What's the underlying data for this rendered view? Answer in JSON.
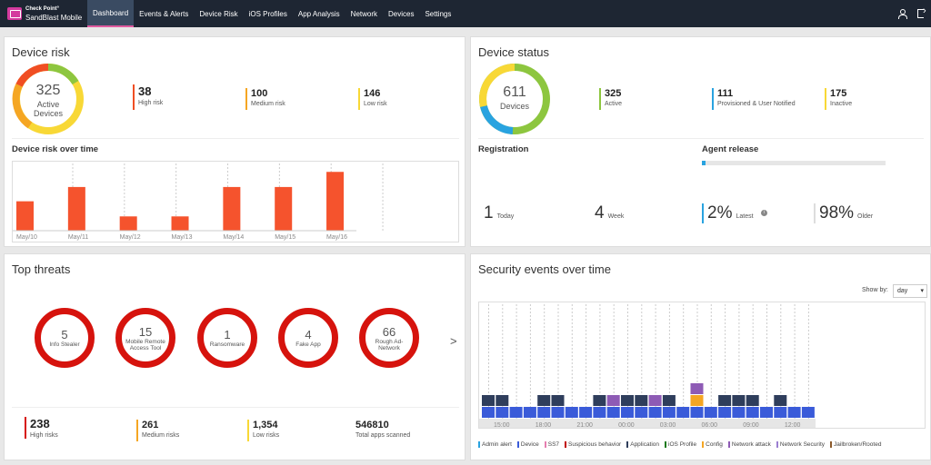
{
  "nav": {
    "logo_top": "Check Point°",
    "logo_bottom": "SandBlast Mobile",
    "items": [
      "Dashboard",
      "Events & Alerts",
      "Device Risk",
      "iOS Profiles",
      "App Analysis",
      "Network",
      "Devices",
      "Settings"
    ],
    "active": "Dashboard"
  },
  "device_risk": {
    "title": "Device risk",
    "total": "325",
    "total_label": "Active Devices",
    "stats": [
      {
        "value": "38",
        "label": "High risk",
        "color": "#f04e23"
      },
      {
        "value": "100",
        "label": "Medium risk",
        "color": "#f5a623"
      },
      {
        "value": "146",
        "label": "Low risk",
        "color": "#f8d836"
      }
    ],
    "donut_colors": {
      "high": "#f04e23",
      "medium": "#8dc63f",
      "low": "#f8d836",
      "other": "#f5a623"
    },
    "over_time_title": "Device risk over time"
  },
  "device_status": {
    "title": "Device status",
    "total": "611",
    "total_label": "Devices",
    "stats": [
      {
        "value": "325",
        "label": "Active",
        "color": "#8dc63f"
      },
      {
        "value": "111",
        "label": "Provisioned & User Notified",
        "color": "#29a3e0"
      },
      {
        "value": "175",
        "label": "Inactive",
        "color": "#f8d836"
      }
    ],
    "registration_title": "Registration",
    "registration": [
      {
        "value": "1",
        "label": "Today"
      },
      {
        "value": "4",
        "label": "Week"
      }
    ],
    "agent_title": "Agent release",
    "agent_progress": 0.02,
    "agent": [
      {
        "value": "2%",
        "label": "Latest",
        "color": "#29a3e0"
      },
      {
        "value": "98%",
        "label": "Older",
        "color": "#ddd"
      }
    ]
  },
  "top_threats": {
    "title": "Top threats",
    "items": [
      {
        "value": "5",
        "label": "Info Stealer"
      },
      {
        "value": "15",
        "label": "Mobile Remote Access Tool"
      },
      {
        "value": "1",
        "label": "Ransomware"
      },
      {
        "value": "4",
        "label": "Fake App"
      },
      {
        "value": "66",
        "label": "Rough Ad-Network"
      }
    ],
    "next_label": ">",
    "stats": [
      {
        "value": "238",
        "label": "High risks",
        "color": "#d6130d"
      },
      {
        "value": "261",
        "label": "Medium risks",
        "color": "#f5a623"
      },
      {
        "value": "1,354",
        "label": "Low risks",
        "color": "#f8d836"
      },
      {
        "value": "546810",
        "label": "Total apps scanned",
        "color": ""
      }
    ]
  },
  "security_events": {
    "title": "Security events over time",
    "show_by_label": "Show by:",
    "show_by_value": "day",
    "legend": [
      {
        "label": "Admin alert",
        "color": "#29a3e0"
      },
      {
        "label": "Device",
        "color": "#3a5bd9"
      },
      {
        "label": "SS7",
        "color": "#e57fb0"
      },
      {
        "label": "Suspicious behavior",
        "color": "#c00000"
      },
      {
        "label": "Application",
        "color": "#2f3e5c"
      },
      {
        "label": "iOS Profile",
        "color": "#1a7a1a"
      },
      {
        "label": "Config",
        "color": "#f5a623"
      },
      {
        "label": "Network attack",
        "color": "#8e5bb5"
      },
      {
        "label": "Network Security",
        "color": "#9b7fd1"
      },
      {
        "label": "Jailbroken/Rooted",
        "color": "#8b5a2b"
      }
    ]
  },
  "chart_data": [
    {
      "type": "bar",
      "title": "Device risk over time",
      "categories": [
        "May/10",
        "May/11",
        "May/12",
        "May/13",
        "May/14",
        "May/15",
        "May/16"
      ],
      "values": [
        35,
        52,
        17,
        17,
        52,
        52,
        70
      ],
      "ylim": [
        0,
        80
      ],
      "color": "#f5532d"
    },
    {
      "type": "bar",
      "title": "Security events over time",
      "x_ticks": [
        "15:00",
        "18:00",
        "21:00",
        "00:00",
        "03:00",
        "06:00",
        "09:00",
        "12:00"
      ],
      "ylim": [
        0,
        5
      ],
      "series": [
        {
          "name": "Device",
          "values": [
            1,
            1,
            1,
            1,
            1,
            1,
            1,
            1,
            1,
            1,
            1,
            1,
            1,
            1,
            1,
            1,
            1,
            1,
            1,
            1,
            1,
            1,
            1,
            1
          ],
          "color": "#3a5bd9"
        },
        {
          "name": "Application",
          "values": [
            1,
            1,
            0,
            0,
            1,
            1,
            0,
            0,
            1,
            0,
            1,
            1,
            0,
            1,
            0,
            0,
            0,
            1,
            1,
            1,
            0,
            1,
            0,
            0
          ],
          "color": "#2f3e5c"
        },
        {
          "name": "Config",
          "values": [
            0,
            0,
            0,
            0,
            0,
            0,
            0,
            0,
            0,
            0,
            0,
            0,
            0,
            0,
            0,
            1,
            0,
            0,
            0,
            0,
            0,
            0,
            0,
            0
          ],
          "color": "#f5a623"
        },
        {
          "name": "Network attack",
          "values": [
            0,
            0,
            0,
            0,
            0,
            0,
            0,
            0,
            0,
            1,
            0,
            0,
            1,
            0,
            0,
            1,
            0,
            0,
            0,
            0,
            0,
            0,
            0,
            0
          ],
          "color": "#8e5bb5"
        }
      ]
    }
  ]
}
